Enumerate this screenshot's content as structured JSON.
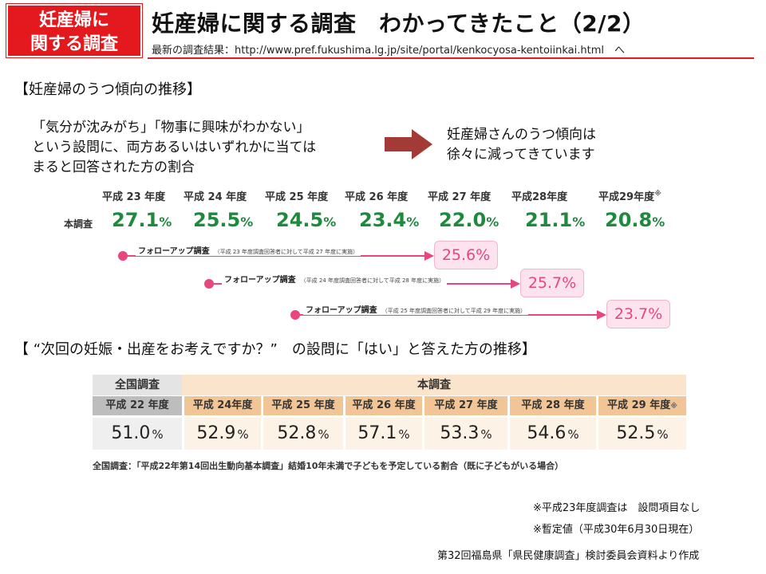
{
  "badge": {
    "line1": "妊産婦に",
    "line2": "関する調査"
  },
  "header": {
    "title": "妊産婦に関する調査　わかってきたこと（2/2）",
    "url_text": "最新の調査結果：http://www.pref.fukushima.lg.jp/site/portal/kenkocyosa-kentoiinkai.html　へ"
  },
  "section1": {
    "heading": "【妊産婦のうつ傾向の推移】",
    "question_lines": [
      "「気分が沈みがち」「物事に興味がわかない」",
      "という設問に、両方あるいはいずれかに当ては",
      "まると回答された方の割合"
    ],
    "conclusion_lines": [
      "妊産婦さんのうつ傾向は",
      "徐々に減ってきています"
    ],
    "row_label": "本調査",
    "years": [
      "平成 23 年度",
      "平成 24 年度",
      "平成 25 年度",
      "平成 26 年度",
      "平成 27 年度",
      "平成28年度",
      "平成29年度"
    ],
    "last_year_mark": "※",
    "values": [
      "27.1",
      "25.5",
      "24.5",
      "23.4",
      "22.0",
      "21.1",
      "20.8"
    ],
    "values_unit_small": "%",
    "followups": [
      {
        "label": "フォローアップ調査",
        "note": "（平成 23 年度調査回答者に対して平成 27 年度に実施）",
        "value": "25.6%"
      },
      {
        "label": "フォローアップ調査",
        "note": "（平成 24 年度調査回答者に対して平成 28 年度に実施）",
        "value": "25.7%"
      },
      {
        "label": "フォローアップ調査",
        "note": "（平成 25 年度調査回答者に対して平成 29 年度に実施）",
        "value": "23.7%"
      }
    ]
  },
  "section2": {
    "heading": "【 “次回の妊娠・出産をお考えですか？”　の設問に「はい」と答えた方の推移】",
    "national_header": "全国調査",
    "main_header": "本調査",
    "national_year": "平成 22 年度",
    "national_value": "51.0",
    "main_years": [
      "平成 24年度",
      "平成 25 年度",
      "平成 26 年度",
      "平成 27 年度",
      "平成 28 年度",
      "平成 29 年度"
    ],
    "main_values": [
      "52.9",
      "52.8",
      "57.1",
      "53.3",
      "54.6",
      "52.5"
    ],
    "unit": "%",
    "last_year_mark": "※",
    "note": "全国調査：「平成22年第14回出生動向基本調査」結婚10年未満で子どもを予定している割合（既に子どもがいる場合）"
  },
  "footnotes": {
    "note1": "※平成23年度調査は　設問項目なし",
    "note2": "※暫定値（平成30年6月30日現在）",
    "source": "第32回福島県「県民健康調査」検討委員会資料より作成"
  },
  "colors": {
    "badge_red": "#e3191e",
    "value_green": "#1e8a3d",
    "followup_pink": "#e8467f",
    "arrow_red": "#a33a36"
  }
}
